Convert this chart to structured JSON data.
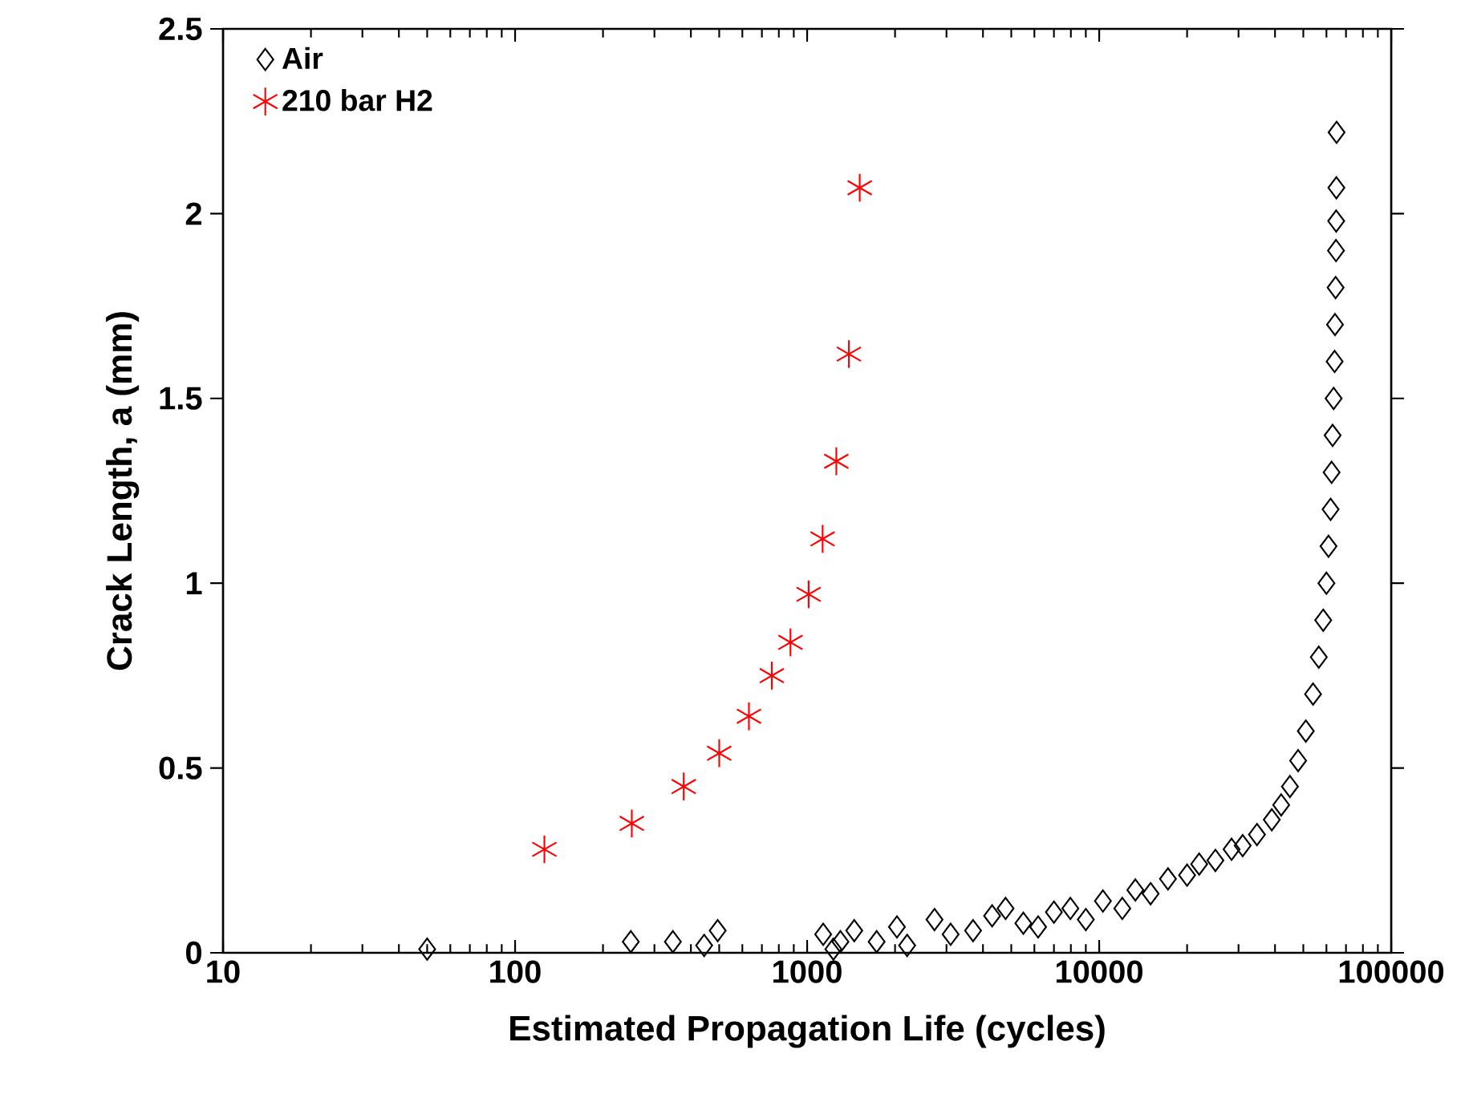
{
  "chart_data": {
    "type": "scatter",
    "xlabel": "Estimated Propagation Life (cycles)",
    "ylabel": "Crack Length, a (mm)",
    "log": "x",
    "xlim": [
      10,
      100000
    ],
    "xticks": [
      10,
      100,
      1000,
      10000,
      100000
    ],
    "ylim": [
      0,
      2.5
    ],
    "yticks": [
      0,
      0.5,
      1,
      1.5,
      2,
      2.5
    ],
    "grid": false,
    "legend": "top left",
    "series": [
      {
        "name": "Air",
        "color": "#000000",
        "marker": "diamond",
        "x": [
          50,
          249,
          347,
          444,
          494,
          1135,
          1230,
          1300,
          1450,
          1730,
          2030,
          2200,
          2730,
          3100,
          3700,
          4300,
          4780,
          5500,
          6180,
          7000,
          7970,
          9000,
          10300,
          12000,
          13300,
          15000,
          17200,
          20000,
          22000,
          25000,
          28400,
          31000,
          34700,
          39000,
          42000,
          45000,
          48000,
          51000,
          54000,
          56500,
          58500,
          60000,
          61000,
          62000,
          62500,
          63000,
          63500,
          64000,
          64200,
          64500,
          64700,
          64800,
          64900,
          65000
        ],
        "values": [
          0.01,
          0.03,
          0.03,
          0.02,
          0.06,
          0.05,
          0.01,
          0.03,
          0.06,
          0.03,
          0.07,
          0.02,
          0.09,
          0.05,
          0.06,
          0.1,
          0.12,
          0.08,
          0.07,
          0.11,
          0.12,
          0.09,
          0.14,
          0.12,
          0.17,
          0.16,
          0.2,
          0.21,
          0.24,
          0.25,
          0.28,
          0.29,
          0.32,
          0.36,
          0.4,
          0.45,
          0.52,
          0.6,
          0.7,
          0.8,
          0.9,
          1.0,
          1.1,
          1.2,
          1.3,
          1.4,
          1.5,
          1.6,
          1.7,
          1.8,
          1.9,
          1.98,
          2.07,
          2.22
        ]
      },
      {
        "name": "210 bar H2",
        "color": "#ff0000",
        "marker": "cross",
        "x": [
          126,
          251,
          378,
          500,
          632,
          757,
          877,
          1012,
          1130,
          1259,
          1390,
          1514
        ],
        "values": [
          0.28,
          0.35,
          0.45,
          0.54,
          0.64,
          0.75,
          0.84,
          0.97,
          1.12,
          1.33,
          1.62,
          2.07
        ]
      }
    ]
  }
}
